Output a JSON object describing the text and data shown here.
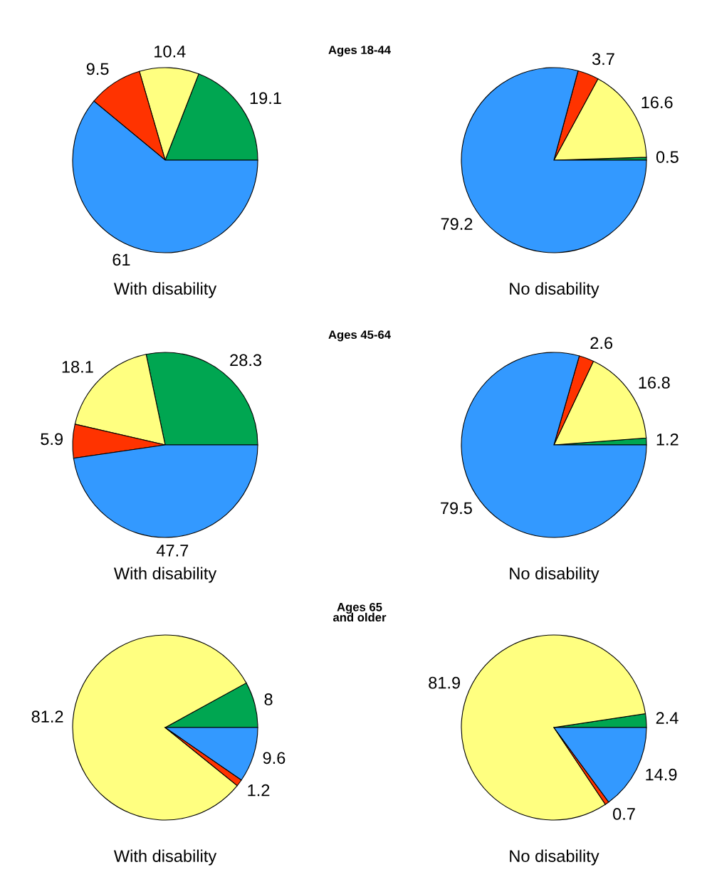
{
  "chart_data": [
    {
      "type": "pie",
      "title": "Ages 18-44",
      "xlabel": "With disability",
      "categories": [
        null,
        null,
        null,
        null
      ],
      "values": [
        19.1,
        10.4,
        9.5,
        61
      ],
      "colors": [
        "#00a651",
        "#ffff80",
        "#ff3300",
        "#3399ff"
      ],
      "data_labels": true
    },
    {
      "type": "pie",
      "xlabel": "No disability",
      "categories": [
        null,
        null,
        null,
        null
      ],
      "values": [
        0.5,
        16.6,
        3.7,
        79.2
      ],
      "colors": [
        "#00a651",
        "#ffff80",
        "#ff3300",
        "#3399ff"
      ],
      "data_labels": true
    },
    {
      "type": "pie",
      "title": "Ages 45-64",
      "xlabel": "With disability",
      "categories": [
        null,
        null,
        null,
        null
      ],
      "values": [
        28.3,
        18.1,
        5.9,
        47.7
      ],
      "colors": [
        "#00a651",
        "#ffff80",
        "#ff3300",
        "#3399ff"
      ],
      "data_labels": true
    },
    {
      "type": "pie",
      "xlabel": "No disability",
      "categories": [
        null,
        null,
        null,
        null
      ],
      "values": [
        1.2,
        16.8,
        2.6,
        79.5
      ],
      "colors": [
        "#00a651",
        "#ffff80",
        "#ff3300",
        "#3399ff"
      ],
      "data_labels": true
    },
    {
      "type": "pie",
      "title": "Ages 65\nand older",
      "xlabel": "With disability",
      "categories": [
        null,
        null,
        null,
        null
      ],
      "values": [
        8,
        81.2,
        1.2,
        9.6
      ],
      "colors": [
        "#00a651",
        "#ffff80",
        "#ff3300",
        "#3399ff"
      ],
      "data_labels": true
    },
    {
      "type": "pie",
      "xlabel": "No disability",
      "categories": [
        null,
        null,
        null,
        null
      ],
      "values": [
        2.4,
        81.9,
        0.7,
        14.9
      ],
      "colors": [
        "#00a651",
        "#ffff80",
        "#ff3300",
        "#3399ff"
      ],
      "data_labels": true
    }
  ]
}
